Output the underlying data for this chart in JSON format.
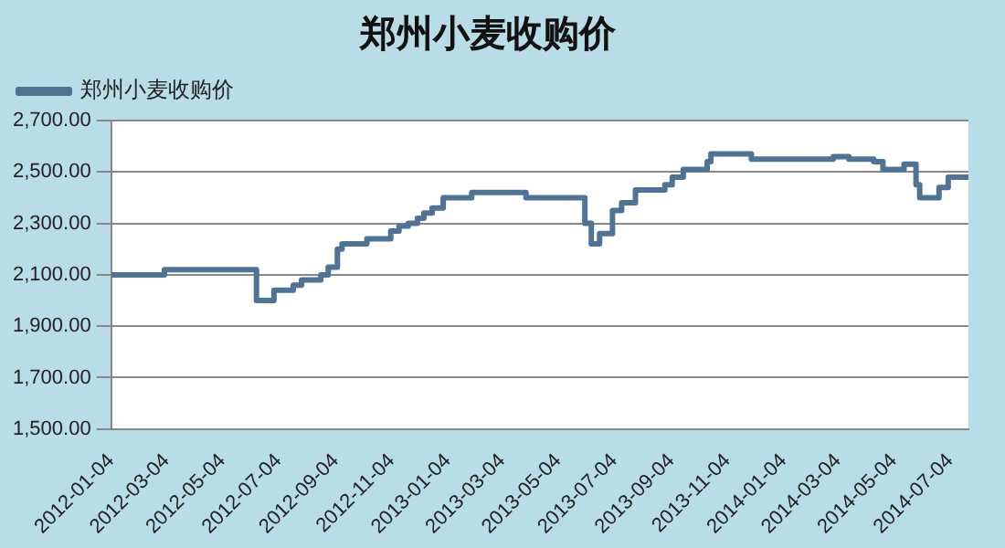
{
  "chart_data": {
    "type": "step",
    "title": "郑州小麦收购价",
    "series": [
      {
        "name": "郑州小麦收购价",
        "color": "#4f7394",
        "x": [
          "2012-01-04",
          "2012-03-02",
          "2012-06-10",
          "2012-06-29",
          "2012-07-20",
          "2012-07-29",
          "2012-08-19",
          "2012-08-27",
          "2012-09-06",
          "2012-09-11",
          "2012-10-08",
          "2012-11-03",
          "2012-11-12",
          "2012-11-22",
          "2012-12-02",
          "2012-12-09",
          "2012-12-18",
          "2012-12-30",
          "2013-01-30",
          "2013-03-30",
          "2013-06-02",
          "2013-06-09",
          "2013-06-18",
          "2013-07-02",
          "2013-07-12",
          "2013-07-27",
          "2013-08-28",
          "2013-09-05",
          "2013-09-17",
          "2013-10-13",
          "2013-10-17",
          "2013-11-30",
          "2014-02-27",
          "2014-03-16",
          "2014-04-12",
          "2014-04-22",
          "2014-05-15",
          "2014-05-28",
          "2014-06-01",
          "2014-06-22",
          "2014-07-02",
          "2014-07-23"
        ],
        "values": [
          2100,
          2120,
          2000,
          2040,
          2060,
          2080,
          2100,
          2130,
          2200,
          2220,
          2240,
          2270,
          2290,
          2300,
          2320,
          2340,
          2360,
          2400,
          2420,
          2400,
          2300,
          2220,
          2260,
          2350,
          2380,
          2430,
          2450,
          2480,
          2510,
          2540,
          2570,
          2550,
          2560,
          2550,
          2540,
          2510,
          2530,
          2450,
          2400,
          2440,
          2480,
          2490
        ]
      }
    ],
    "xlim": [
      "2012-01-04",
      "2014-07-24"
    ],
    "xticks": [
      "2012-01-04",
      "2012-03-04",
      "2012-05-04",
      "2012-07-04",
      "2012-09-04",
      "2012-11-04",
      "2013-01-04",
      "2013-03-04",
      "2013-05-04",
      "2013-07-04",
      "2013-09-04",
      "2013-11-04",
      "2014-01-04",
      "2014-03-04",
      "2014-05-04",
      "2014-07-04"
    ],
    "ylim": [
      1500,
      2700
    ],
    "yticks": [
      {
        "value": 1500,
        "label": "1,500.00"
      },
      {
        "value": 1700,
        "label": "1,700.00"
      },
      {
        "value": 1900,
        "label": "1,900.00"
      },
      {
        "value": 2100,
        "label": "2,100.00"
      },
      {
        "value": 2300,
        "label": "2,300.00"
      },
      {
        "value": 2500,
        "label": "2,500.00"
      },
      {
        "value": 2700,
        "label": "2,700.00"
      }
    ],
    "grid": "y",
    "legend": "top left"
  }
}
